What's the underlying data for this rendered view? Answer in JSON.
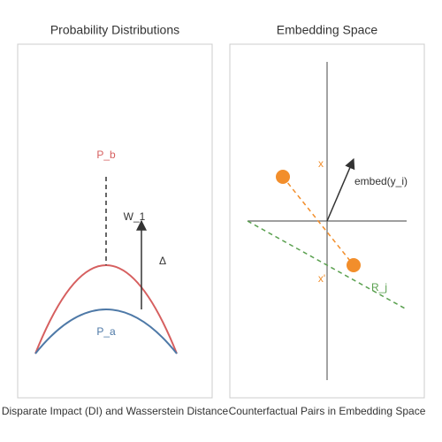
{
  "left_panel": {
    "title": "Probability Distributions",
    "labels": {
      "p_b": "P_b",
      "w_1": "W_1",
      "delta": "Δ",
      "p_a": "P_a"
    },
    "caption": "Disparate Impact (DI) and Wasserstein Distance"
  },
  "right_panel": {
    "title": "Embedding Space",
    "labels": {
      "x": "x",
      "embed": "embed(y_i)",
      "x_prime": "x'",
      "r_j": "R_j"
    },
    "caption": "Counterfactual Pairs in Embedding Space"
  }
}
